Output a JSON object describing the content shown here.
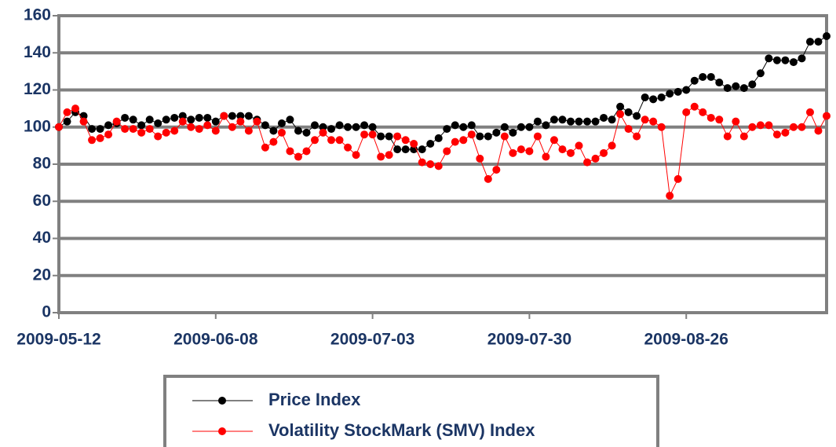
{
  "chart_data": {
    "type": "line",
    "categories": [
      "2009-05-12",
      null,
      null,
      null,
      null,
      null,
      null,
      null,
      null,
      null,
      null,
      null,
      null,
      null,
      null,
      null,
      null,
      null,
      null,
      "2009-06-08",
      null,
      null,
      null,
      null,
      null,
      null,
      null,
      null,
      null,
      null,
      null,
      null,
      null,
      null,
      null,
      null,
      null,
      null,
      "2009-07-03",
      null,
      null,
      null,
      null,
      null,
      null,
      null,
      null,
      null,
      null,
      null,
      null,
      null,
      null,
      null,
      null,
      null,
      null,
      "2009-07-30",
      null,
      null,
      null,
      null,
      null,
      null,
      null,
      null,
      null,
      null,
      null,
      null,
      null,
      null,
      null,
      null,
      null,
      null,
      "2009-08-26",
      null,
      null,
      null,
      null,
      null,
      null,
      null,
      null,
      null,
      null,
      null,
      null,
      null,
      null,
      null,
      null,
      null
    ],
    "series": [
      {
        "name": "Price Index",
        "color": "#000000",
        "values": [
          100,
          103,
          108,
          106,
          99,
          99,
          101,
          102,
          105,
          104,
          101,
          104,
          102,
          104,
          105,
          106,
          104,
          105,
          105,
          103,
          106,
          106,
          106,
          106,
          104,
          101,
          98,
          102,
          104,
          98,
          97,
          101,
          100,
          99,
          101,
          100,
          100,
          101,
          100,
          95,
          95,
          88,
          88,
          88,
          88,
          91,
          94,
          99,
          101,
          100,
          101,
          95,
          95,
          97,
          100,
          97,
          100,
          100,
          103,
          101,
          104,
          104,
          103,
          103,
          103,
          103,
          105,
          104,
          111,
          108,
          106,
          116,
          115,
          116,
          118,
          119,
          120,
          125,
          127,
          127,
          124,
          121,
          122,
          121,
          123,
          129,
          137,
          136,
          136,
          135,
          137,
          146,
          146,
          149
        ]
      },
      {
        "name": "Volatility StockMark (SMV) Index",
        "color": "#ff0000",
        "values": [
          100,
          108,
          110,
          103,
          93,
          94,
          96,
          103,
          99,
          99,
          97,
          99,
          95,
          97,
          98,
          103,
          100,
          99,
          101,
          98,
          106,
          100,
          103,
          98,
          103,
          89,
          92,
          97,
          87,
          84,
          87,
          93,
          97,
          93,
          93,
          89,
          85,
          96,
          96,
          84,
          85,
          95,
          93,
          91,
          81,
          80,
          79,
          87,
          92,
          93,
          96,
          83,
          72,
          77,
          95,
          86,
          88,
          87,
          95,
          84,
          93,
          88,
          86,
          90,
          81,
          83,
          86,
          90,
          107,
          99,
          95,
          104,
          103,
          100,
          63,
          72,
          108,
          111,
          108,
          105,
          104,
          95,
          103,
          95,
          100,
          101,
          101,
          96,
          97,
          100,
          100,
          108,
          98,
          106
        ]
      }
    ],
    "ylim": [
      0,
      160
    ],
    "yticks": [
      0,
      20,
      40,
      60,
      80,
      100,
      120,
      140,
      160
    ],
    "grid": true,
    "legend": "bottom"
  }
}
